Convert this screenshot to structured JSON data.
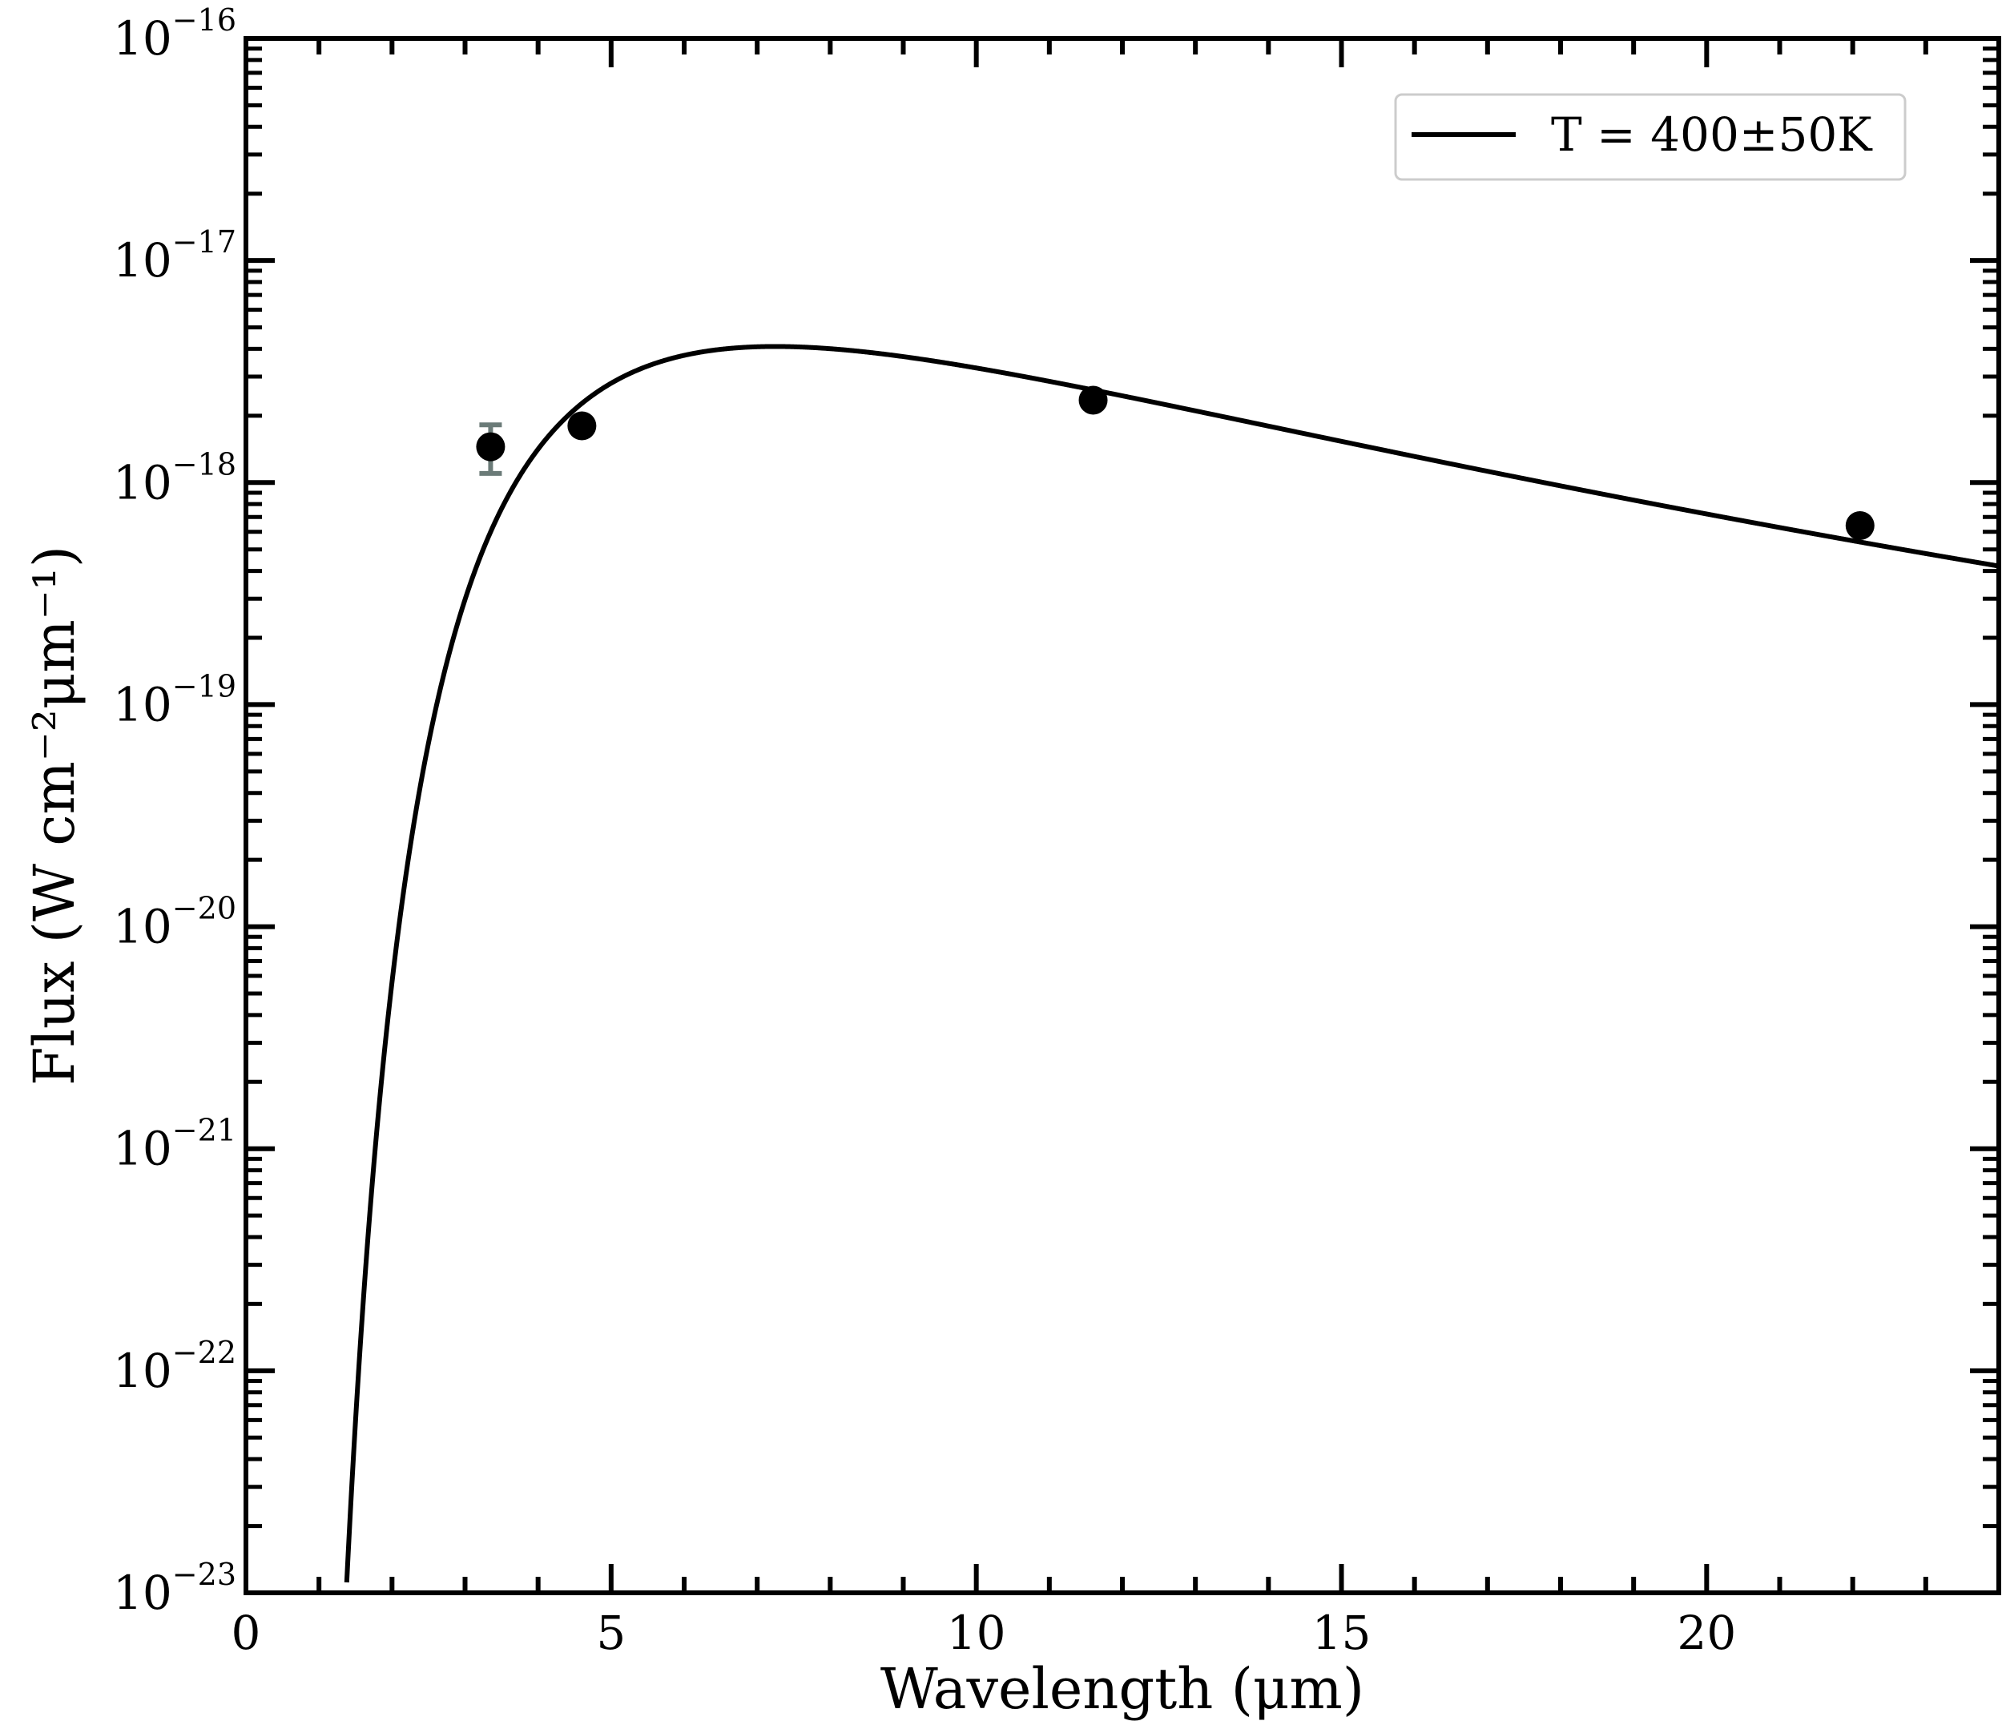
{
  "chart_data": {
    "type": "scatter",
    "xlabel": "Wavelength (μm)",
    "ylabel": "Flux (W cm⁻²μm⁻¹)",
    "xlim": [
      0,
      24
    ],
    "ylim": [
      1e-23,
      1e-16
    ],
    "yscale": "log",
    "x_ticks": [
      0,
      5,
      10,
      15,
      20
    ],
    "y_tick_exponents": [
      -23,
      -22,
      -21,
      -20,
      -19,
      -18,
      -17,
      -16
    ],
    "y_tick_base": "10",
    "grid": false,
    "legend_position": "top-right",
    "series": [
      {
        "name": "T = 400±50K",
        "kind": "line",
        "model": "blackbody",
        "temperature_K": 400,
        "color": "#000000",
        "peak": {
          "x": 7.25,
          "y": 4.1e-18
        }
      },
      {
        "kind": "scatter",
        "color": "#000000",
        "errorbar_color": "#6b7b78",
        "points": [
          {
            "x": 3.35,
            "y": 1.45e-18,
            "err_low": 3.5e-19,
            "err_high": 3.7e-19
          },
          {
            "x": 4.6,
            "y": 1.8e-18,
            "err_low": 1e-19,
            "err_high": 1e-19
          },
          {
            "x": 11.6,
            "y": 2.35e-18,
            "err_low": 0,
            "err_high": 0
          },
          {
            "x": 22.1,
            "y": 6.4e-19,
            "err_low": 0,
            "err_high": 0
          }
        ]
      }
    ]
  }
}
